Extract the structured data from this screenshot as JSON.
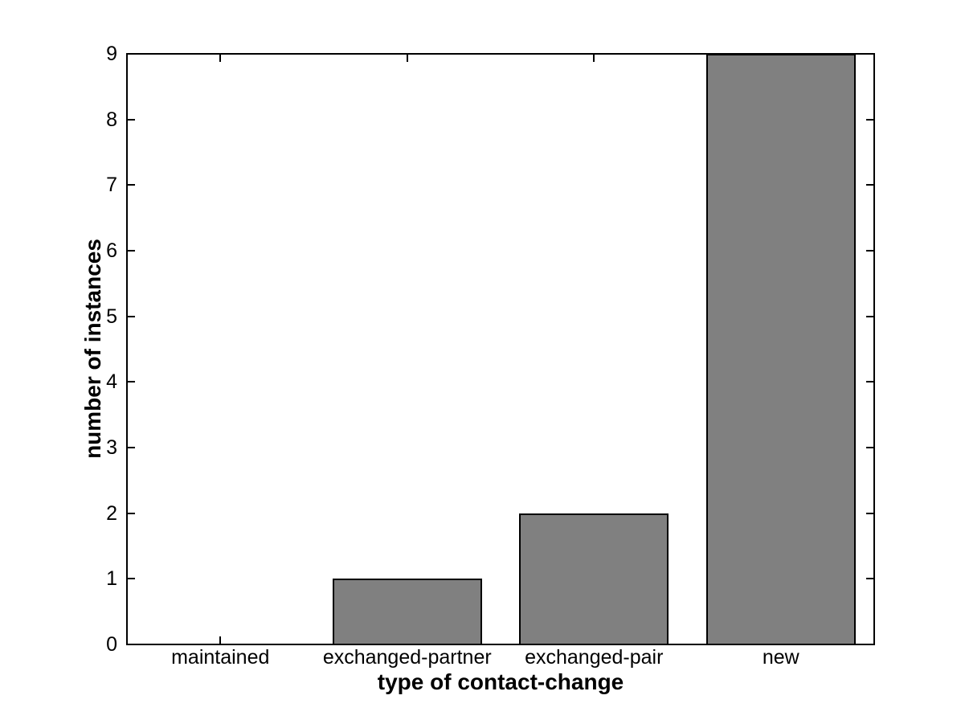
{
  "chart_data": {
    "type": "bar",
    "categories": [
      "maintained",
      "exchanged-partner",
      "exchanged-pair",
      "new"
    ],
    "values": [
      0,
      1,
      2,
      9
    ],
    "title": "",
    "xlabel": "type of contact-change",
    "ylabel": "number of instances",
    "ylim": [
      0,
      9
    ],
    "yticks": [
      0,
      1,
      2,
      3,
      4,
      5,
      6,
      7,
      8,
      9
    ],
    "bar_width_fraction": 0.8,
    "bar_color": "#808080",
    "bar_edge_color": "#000000",
    "axis_color": "#000000",
    "background_color": "#ffffff",
    "grid": false,
    "legend": "none"
  }
}
